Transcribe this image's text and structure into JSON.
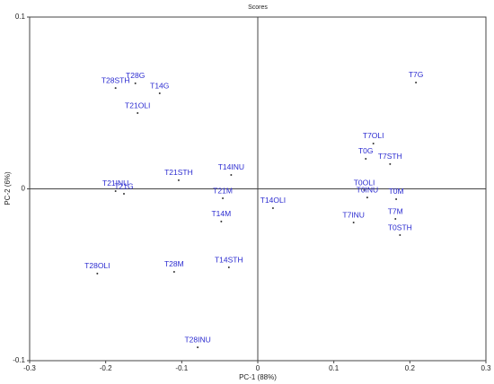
{
  "chart_data": {
    "type": "scatter",
    "title": "Scores",
    "x_label": "PC-1 (88%)",
    "y_label": "PC-2 (6%)",
    "labels": [
      "T28STH",
      "T28G",
      "T14G",
      "T21OLI",
      "T7G",
      "T7OLI",
      "T0G",
      "T7STH",
      "T21STH",
      "T14INU",
      "T21INU",
      "T21G",
      "T21M",
      "T0OLI",
      "T0INU",
      "T0M",
      "T7M",
      "T0STH",
      "T7INU",
      "T14OLI",
      "T14M",
      "T28OLI",
      "T28M",
      "T14STH",
      "T28INU"
    ],
    "x": [
      -0.187,
      -0.161,
      -0.129,
      -0.158,
      0.208,
      0.152,
      0.142,
      0.174,
      -0.104,
      -0.035,
      -0.187,
      -0.176,
      -0.046,
      0.14,
      0.144,
      0.182,
      0.181,
      0.187,
      0.126,
      0.02,
      -0.048,
      -0.211,
      -0.11,
      -0.038,
      -0.079
    ],
    "values": [
      0.0587,
      0.0614,
      0.0556,
      0.0441,
      0.0619,
      0.0264,
      0.0175,
      0.0144,
      0.005,
      0.0081,
      -0.0013,
      -0.0029,
      -0.0055,
      -0.0008,
      -0.005,
      -0.006,
      -0.0175,
      -0.0269,
      -0.0196,
      -0.0112,
      -0.019,
      -0.0493,
      -0.0483,
      -0.0457,
      -0.0922
    ],
    "label_color": "#2b2bd0",
    "marker_color": "#333333",
    "xlim": [
      -0.3,
      0.3
    ],
    "xticks": [
      -0.3,
      -0.2,
      -0.1,
      0,
      0.1,
      0.2,
      0.3
    ],
    "ylim": [
      -0.1,
      0.1
    ],
    "yticks": [
      -0.1,
      0,
      0.1
    ]
  }
}
